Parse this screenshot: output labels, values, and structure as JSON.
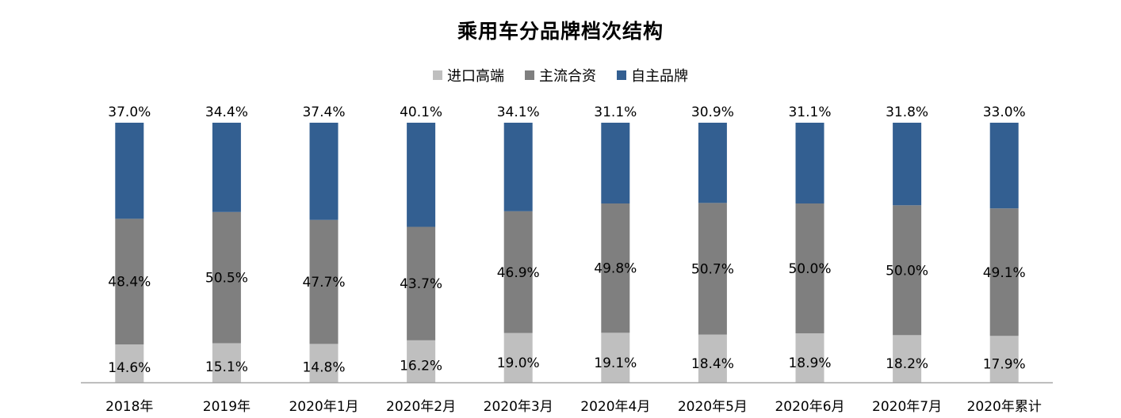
{
  "chart_data": {
    "type": "bar",
    "stacked": true,
    "percent": true,
    "title": "乘用车分品牌档次结构",
    "categories": [
      "2018年",
      "2019年",
      "2020年1月",
      "2020年2月",
      "2020年3月",
      "2020年4月",
      "2020年5月",
      "2020年6月",
      "2020年7月",
      "2020年累计"
    ],
    "series": [
      {
        "name": "进口高端",
        "color": "#bfbfbf",
        "values": [
          14.6,
          15.1,
          14.8,
          16.2,
          19.0,
          19.1,
          18.4,
          18.9,
          18.2,
          17.9
        ]
      },
      {
        "name": "主流合资",
        "color": "#7f7f7f",
        "values": [
          48.4,
          50.5,
          47.7,
          43.7,
          46.9,
          49.8,
          50.7,
          50.0,
          50.0,
          49.1
        ]
      },
      {
        "name": "自主品牌",
        "color": "#335f91",
        "values": [
          37.0,
          34.4,
          37.4,
          40.1,
          34.1,
          31.1,
          30.9,
          31.1,
          31.8,
          33.0
        ]
      }
    ],
    "ylim": [
      0,
      100
    ],
    "legend": "top-center",
    "grid": false
  }
}
